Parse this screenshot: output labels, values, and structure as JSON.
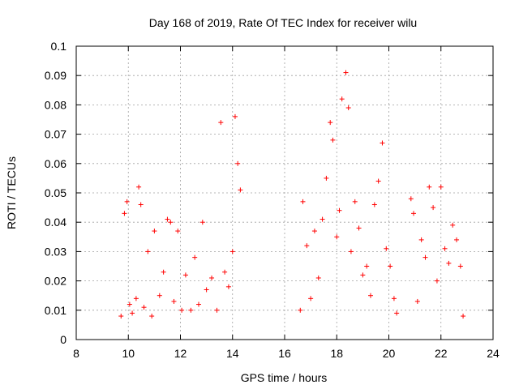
{
  "chart_data": {
    "type": "scatter",
    "title": "Day 168 of 2019, Rate Of TEC Index for receiver wilu",
    "xlabel": "GPS time / hours",
    "ylabel": "ROTI / TECUs",
    "xlim": [
      8,
      24
    ],
    "ylim": [
      0,
      0.1
    ],
    "x_ticks": [
      8,
      10,
      12,
      14,
      16,
      18,
      20,
      22,
      24
    ],
    "x_tick_labels": [
      "8",
      "10",
      "12",
      "14",
      "16",
      "18",
      "20",
      "22",
      "24"
    ],
    "y_ticks": [
      0,
      0.01,
      0.02,
      0.03,
      0.04,
      0.05,
      0.06,
      0.07,
      0.08,
      0.09,
      0.1
    ],
    "y_tick_labels": [
      "0",
      "0.01",
      "0.02",
      "0.03",
      "0.04",
      "0.05",
      "0.06",
      "0.07",
      "0.08",
      "0.09",
      "0.1"
    ],
    "grid": true,
    "marker": "+",
    "color": "#ff0000",
    "series": [
      {
        "name": "ROTI",
        "x": [
          9.72,
          9.85,
          9.95,
          10.05,
          10.15,
          10.3,
          10.4,
          10.48,
          10.6,
          10.75,
          10.9,
          11.0,
          11.2,
          11.35,
          11.5,
          11.62,
          11.75,
          11.9,
          12.05,
          12.2,
          12.4,
          12.55,
          12.7,
          12.85,
          13.0,
          13.2,
          13.4,
          13.55,
          13.7,
          13.85,
          14.0,
          14.1,
          14.2,
          14.3,
          16.6,
          16.7,
          16.85,
          17.0,
          17.15,
          17.3,
          17.45,
          17.6,
          17.75,
          17.85,
          18.0,
          18.1,
          18.2,
          18.35,
          18.45,
          18.55,
          18.7,
          18.85,
          19.0,
          19.15,
          19.3,
          19.45,
          19.6,
          19.75,
          19.9,
          20.05,
          20.2,
          20.3,
          20.85,
          20.95,
          21.1,
          21.25,
          21.4,
          21.55,
          21.7,
          21.85,
          22.0,
          22.15,
          22.3,
          22.45,
          22.6,
          22.75,
          22.85
        ],
        "y": [
          0.008,
          0.043,
          0.047,
          0.012,
          0.009,
          0.014,
          0.052,
          0.046,
          0.011,
          0.03,
          0.008,
          0.037,
          0.015,
          0.023,
          0.041,
          0.04,
          0.013,
          0.037,
          0.01,
          0.022,
          0.01,
          0.028,
          0.012,
          0.04,
          0.017,
          0.021,
          0.01,
          0.074,
          0.023,
          0.018,
          0.03,
          0.076,
          0.06,
          0.051,
          0.01,
          0.047,
          0.032,
          0.014,
          0.037,
          0.021,
          0.041,
          0.055,
          0.074,
          0.068,
          0.035,
          0.044,
          0.082,
          0.091,
          0.079,
          0.03,
          0.047,
          0.038,
          0.022,
          0.025,
          0.015,
          0.046,
          0.054,
          0.067,
          0.031,
          0.025,
          0.014,
          0.009,
          0.048,
          0.043,
          0.013,
          0.034,
          0.028,
          0.052,
          0.045,
          0.02,
          0.052,
          0.031,
          0.026,
          0.039,
          0.034,
          0.025,
          0.008
        ]
      }
    ]
  }
}
